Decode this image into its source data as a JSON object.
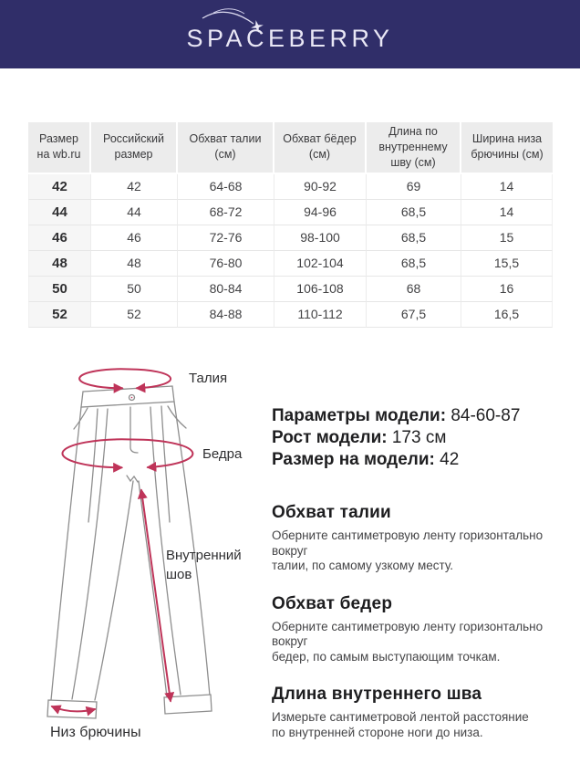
{
  "colors": {
    "header_bg": "#302e69",
    "logo_text": "#e9e7f5",
    "accent_pink": "#bf3459",
    "table_header_bg": "#ececec",
    "table_first_col_bg": "#f6f6f6",
    "text_dark": "#2c2c2e",
    "text_body": "#454547",
    "line_gray": "#8e8e8e"
  },
  "header": {
    "brand": "SPACEBERRY",
    "icon": "shooting-star-icon"
  },
  "size_table": {
    "columns": [
      "Размер на wb.ru",
      "Российский размер",
      "Обхват талии (см)",
      "Обхват бёдер (см)",
      "Длина по внутреннему шву (см)",
      "Ширина низа брючины (см)"
    ],
    "rows": [
      [
        "42",
        "42",
        "64-68",
        "90-92",
        "69",
        "14"
      ],
      [
        "44",
        "44",
        "68-72",
        "94-96",
        "68,5",
        "14"
      ],
      [
        "46",
        "46",
        "72-76",
        "98-100",
        "68,5",
        "15"
      ],
      [
        "48",
        "48",
        "76-80",
        "102-104",
        "68,5",
        "15,5"
      ],
      [
        "50",
        "50",
        "80-84",
        "106-108",
        "68",
        "16"
      ],
      [
        "52",
        "52",
        "84-88",
        "110-112",
        "67,5",
        "16,5"
      ]
    ]
  },
  "diagram": {
    "labels": {
      "waist": "Талия",
      "hips": "Бедра",
      "inseam": "Внутренний\nшов",
      "hem": "Низ брючины"
    }
  },
  "model_info": [
    {
      "label": "Параметры модели:",
      "value": "84-60-87"
    },
    {
      "label": "Рост модели:",
      "value": "173 см"
    },
    {
      "label": "Размер на модели:",
      "value": "42"
    }
  ],
  "measure_guide": [
    {
      "title": "Обхват талии",
      "body": "Оберните сантиметровую ленту горизонтально вокруг\nталии, по самому узкому месту."
    },
    {
      "title": "Обхват бедер",
      "body": "Оберните сантиметровую ленту горизонтально вокруг\nбедер, по самым выступающим точкам."
    },
    {
      "title": "Длина внутреннего шва",
      "body": "Измерьте сантиметровой лентой расстояние\nпо внутренней стороне ноги до низа."
    }
  ]
}
